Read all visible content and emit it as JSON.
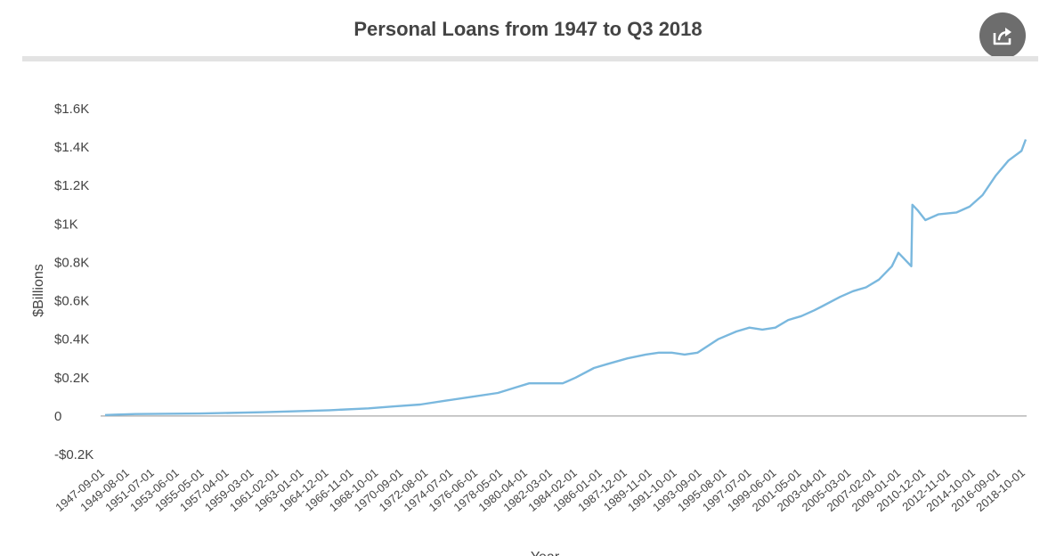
{
  "header": {
    "title": "Personal Loans from 1947 to Q3 2018",
    "share_icon": "share-icon"
  },
  "colors": {
    "line": "#7ab8de",
    "text": "#444444",
    "axis": "#aaaaaa",
    "share_bg": "#6d6d6d"
  },
  "chart_data": {
    "type": "line",
    "title": "Personal Loans from 1947 to Q3 2018",
    "xlabel": "Year",
    "ylabel": "$Billions",
    "ylim": [
      -0.2,
      1.6
    ],
    "y_ticks": [
      {
        "value": 1.6,
        "label": "$1.6K"
      },
      {
        "value": 1.4,
        "label": "$1.4K"
      },
      {
        "value": 1.2,
        "label": "$1.2K"
      },
      {
        "value": 1.0,
        "label": "$1K"
      },
      {
        "value": 0.8,
        "label": "$0.8K"
      },
      {
        "value": 0.6,
        "label": "$0.6K"
      },
      {
        "value": 0.4,
        "label": "$0.4K"
      },
      {
        "value": 0.2,
        "label": "$0.2K"
      },
      {
        "value": 0,
        "label": "0"
      },
      {
        "value": -0.2,
        "label": "-$0.2K"
      }
    ],
    "x_tick_labels": [
      "1947-09-01",
      "1949-08-01",
      "1951-07-01",
      "1953-06-01",
      "1955-05-01",
      "1957-04-01",
      "1959-03-01",
      "1961-02-01",
      "1963-01-01",
      "1964-12-01",
      "1966-11-01",
      "1968-10-01",
      "1970-09-01",
      "1972-08-01",
      "1974-07-01",
      "1976-06-01",
      "1978-05-01",
      "1980-04-01",
      "1982-03-01",
      "1984-02-01",
      "1986-01-01",
      "1987-12-01",
      "1989-11-01",
      "1991-10-01",
      "1993-09-01",
      "1995-08-01",
      "1997-07-01",
      "1999-06-01",
      "2001-05-01",
      "2003-04-01",
      "2005-03-01",
      "2007-02-01",
      "2009-01-01",
      "2010-12-01",
      "2012-11-01",
      "2014-10-01",
      "2016-09-01",
      "2018-10-01"
    ],
    "grid": false,
    "legend": "none",
    "series": [
      {
        "x": [
          "1947-09-01",
          "1950-01-01",
          "1955-01-01",
          "1960-01-01",
          "1965-01-01",
          "1968-01-01",
          "1970-01-01",
          "1972-01-01",
          "1974-01-01",
          "1976-01-01",
          "1978-01-01",
          "1979-06-01",
          "1980-06-01",
          "1981-06-01",
          "1983-01-01",
          "1984-01-01",
          "1985-06-01",
          "1986-06-01",
          "1988-01-01",
          "1989-06-01",
          "1990-06-01",
          "1991-06-01",
          "1992-06-01",
          "1993-06-01",
          "1995-01-01",
          "1996-06-01",
          "1997-06-01",
          "1998-06-01",
          "1999-06-01",
          "2000-06-01",
          "2001-06-01",
          "2002-06-01",
          "2003-01-01",
          "2004-06-01",
          "2005-06-01",
          "2006-06-01",
          "2007-06-01",
          "2008-06-01",
          "2008-12-01",
          "2009-12-01",
          "2010-01-01",
          "2010-06-01",
          "2011-01-01",
          "2012-01-01",
          "2013-06-01",
          "2014-06-01",
          "2015-06-01",
          "2016-06-01",
          "2017-06-01",
          "2018-06-01",
          "2018-10-01"
        ],
        "values": [
          0.005,
          0.01,
          0.013,
          0.02,
          0.03,
          0.04,
          0.05,
          0.06,
          0.08,
          0.1,
          0.12,
          0.15,
          0.17,
          0.17,
          0.17,
          0.2,
          0.25,
          0.27,
          0.3,
          0.32,
          0.33,
          0.33,
          0.32,
          0.33,
          0.4,
          0.44,
          0.46,
          0.45,
          0.46,
          0.5,
          0.52,
          0.55,
          0.57,
          0.62,
          0.65,
          0.67,
          0.71,
          0.78,
          0.85,
          0.78,
          1.1,
          1.07,
          1.02,
          1.05,
          1.06,
          1.09,
          1.15,
          1.25,
          1.33,
          1.38,
          1.44
        ]
      }
    ]
  }
}
